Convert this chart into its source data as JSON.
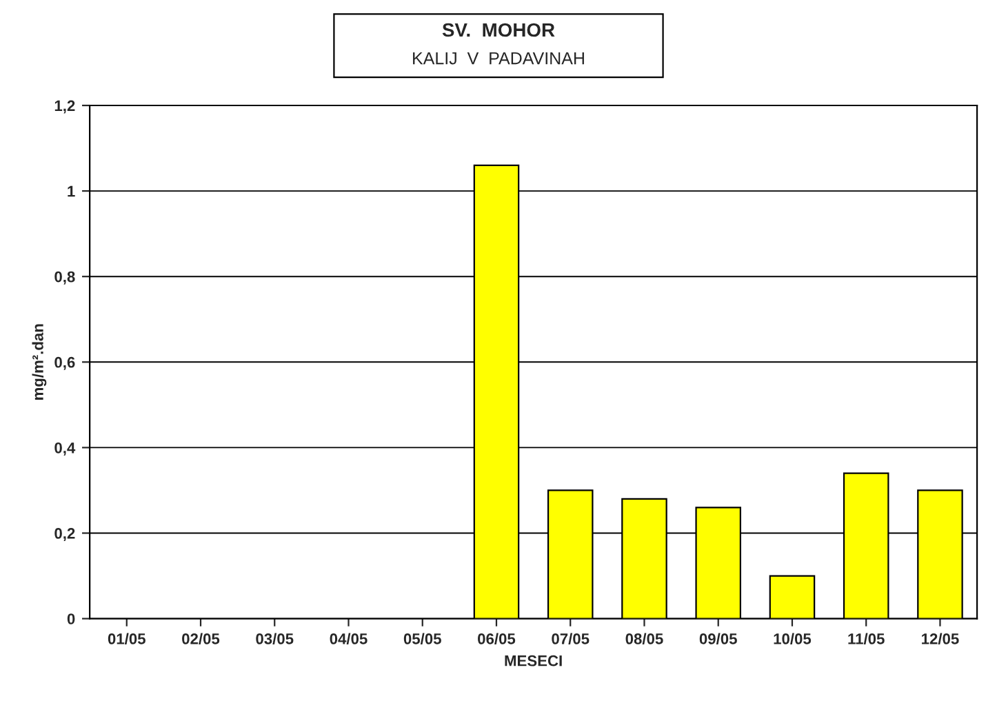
{
  "chart_data": {
    "type": "bar",
    "title": "SV.  MOHOR",
    "subtitle": "KALIJ  V  PADAVINAH",
    "xlabel": "MESECI",
    "ylabel": "mg/m².dan",
    "categories": [
      "01/05",
      "02/05",
      "03/05",
      "04/05",
      "05/05",
      "06/05",
      "07/05",
      "08/05",
      "09/05",
      "10/05",
      "11/05",
      "12/05"
    ],
    "values": [
      null,
      null,
      null,
      null,
      null,
      1.06,
      0.3,
      0.28,
      0.26,
      0.1,
      0.34,
      0.3
    ],
    "color": "#ffff00",
    "ylim": [
      0,
      1.2
    ],
    "yticks": [
      {
        "value": 0,
        "label": "0"
      },
      {
        "value": 0.2,
        "label": "0,2"
      },
      {
        "value": 0.4,
        "label": "0,4"
      },
      {
        "value": 0.6,
        "label": "0,6"
      },
      {
        "value": 0.8,
        "label": "0,8"
      },
      {
        "value": 1,
        "label": "1"
      },
      {
        "value": 1.2,
        "label": "1,2"
      }
    ],
    "grid": "y"
  }
}
